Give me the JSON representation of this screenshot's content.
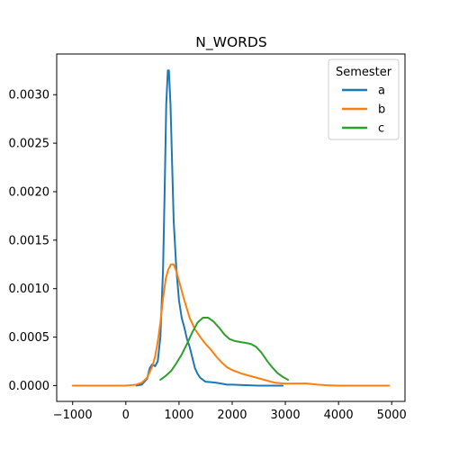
{
  "chart_data": {
    "type": "line",
    "title": "N_WORDS",
    "xlabel": "",
    "ylabel": "",
    "xlim": [
      -1300,
      5250
    ],
    "ylim": [
      -0.000163,
      0.00342
    ],
    "xticks": [
      -1000,
      0,
      1000,
      2000,
      3000,
      4000,
      5000
    ],
    "xtick_labels": [
      "−1000",
      "0",
      "1000",
      "2000",
      "3000",
      "4000",
      "5000"
    ],
    "yticks": [
      0,
      0.0005,
      0.001,
      0.0015,
      0.002,
      0.0025,
      0.003
    ],
    "ytick_labels": [
      "0.0000",
      "0.0005",
      "0.0010",
      "0.0015",
      "0.0020",
      "0.0025",
      "0.0030"
    ],
    "grid": false,
    "legend": {
      "title": "Semester",
      "placement": "top-right"
    },
    "series": [
      {
        "name": "a",
        "color": "#1f77b4",
        "x": [
          200,
          300,
          400,
          450,
          500,
          550,
          600,
          650,
          700,
          730,
          760,
          790,
          810,
          840,
          870,
          900,
          950,
          1000,
          1050,
          1100,
          1150,
          1200,
          1250,
          1300,
          1350,
          1400,
          1500,
          1600,
          1700,
          1800,
          1900,
          2000,
          2200,
          2500,
          2800,
          2950
        ],
        "y": [
          0,
          1e-05,
          7e-05,
          0.00018,
          0.00022,
          0.0002,
          0.00025,
          0.0005,
          0.0012,
          0.002,
          0.0029,
          0.00325,
          0.00325,
          0.0029,
          0.0023,
          0.0017,
          0.0012,
          0.00088,
          0.0007,
          0.0006,
          0.00048,
          0.0004,
          0.00029,
          0.00018,
          0.00012,
          8e-05,
          4e-05,
          3.5e-05,
          3e-05,
          2e-05,
          1e-05,
          1e-05,
          5e-06,
          0,
          0,
          0
        ]
      },
      {
        "name": "b",
        "color": "#ff7f0e",
        "x": [
          -1000,
          -500,
          0,
          200,
          300,
          400,
          500,
          550,
          600,
          650,
          700,
          750,
          800,
          850,
          900,
          950,
          1000,
          1100,
          1200,
          1300,
          1400,
          1500,
          1600,
          1700,
          1800,
          1900,
          2000,
          2200,
          2400,
          2600,
          2800,
          3000,
          3200,
          3400,
          3600,
          3800,
          4000,
          4500,
          4950
        ],
        "y": [
          0,
          0,
          0,
          1e-05,
          3e-05,
          8e-05,
          0.0002,
          0.0003,
          0.00045,
          0.00065,
          0.0009,
          0.0011,
          0.0012,
          0.00125,
          0.00125,
          0.00118,
          0.00108,
          0.00088,
          0.0007,
          0.00058,
          0.0005,
          0.00043,
          0.00037,
          0.0003,
          0.00024,
          0.00019,
          0.00016,
          0.00012,
          9e-05,
          6e-05,
          3e-05,
          2e-05,
          2.2e-05,
          2.2e-05,
          1e-05,
          3e-06,
          0,
          0,
          0
        ]
      },
      {
        "name": "c",
        "color": "#2ca02c",
        "x": [
          650,
          750,
          850,
          950,
          1050,
          1150,
          1250,
          1350,
          1450,
          1550,
          1650,
          1750,
          1850,
          1950,
          2050,
          2150,
          2250,
          2350,
          2450,
          2550,
          2650,
          2750,
          2850,
          2950,
          3050
        ],
        "y": [
          6e-05,
          0.0001,
          0.00015,
          0.00023,
          0.00032,
          0.00043,
          0.00055,
          0.00065,
          0.0007,
          0.0007,
          0.00066,
          0.0006,
          0.00053,
          0.00048,
          0.00046,
          0.00045,
          0.00044,
          0.00043,
          0.0004,
          0.00034,
          0.00026,
          0.00019,
          0.00013,
          9e-05,
          6e-05
        ]
      }
    ]
  }
}
